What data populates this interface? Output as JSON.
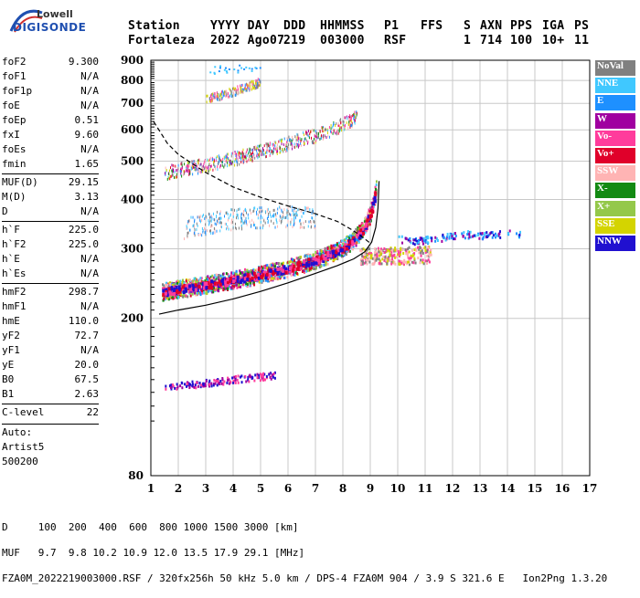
{
  "logo": {
    "line1": "Lowell",
    "line2": "DIGISONDE"
  },
  "header": {
    "labels": [
      "Station",
      "YYYY DAY",
      "DDD",
      "HHMMSS",
      "P1",
      "FFS",
      "S",
      "AXN",
      "PPS",
      "IGA",
      "PS"
    ],
    "values": [
      "Fortaleza",
      "2022 Ago07",
      "219",
      "003000",
      "RSF",
      "",
      "1",
      "714",
      "100",
      "10+",
      "11"
    ]
  },
  "params": [
    [
      {
        "k": "foF2",
        "v": "9.300"
      },
      {
        "k": "foF1",
        "v": "N/A"
      },
      {
        "k": "foF1p",
        "v": "N/A"
      },
      {
        "k": "foE",
        "v": "N/A"
      },
      {
        "k": "foEp",
        "v": "0.51"
      },
      {
        "k": "fxI",
        "v": "9.60"
      },
      {
        "k": "foEs",
        "v": "N/A"
      },
      {
        "k": "fmin",
        "v": "1.65"
      }
    ],
    [
      {
        "k": "MUF(D)",
        "v": "29.15"
      },
      {
        "k": "M(D)",
        "v": "3.13"
      },
      {
        "k": "D",
        "v": "N/A"
      }
    ],
    [
      {
        "k": "h`F",
        "v": "225.0"
      },
      {
        "k": "h`F2",
        "v": "225.0"
      },
      {
        "k": "h`E",
        "v": "N/A"
      },
      {
        "k": "h`Es",
        "v": "N/A"
      }
    ],
    [
      {
        "k": "hmF2",
        "v": "298.7"
      },
      {
        "k": "hmF1",
        "v": "N/A"
      },
      {
        "k": "hmE",
        "v": "110.0"
      },
      {
        "k": "yF2",
        "v": "72.7"
      },
      {
        "k": "yF1",
        "v": "N/A"
      },
      {
        "k": "yE",
        "v": "20.0"
      },
      {
        "k": "B0",
        "v": "67.5"
      },
      {
        "k": "B1",
        "v": "2.63"
      }
    ],
    [
      {
        "k": "C-level",
        "v": "22"
      }
    ]
  ],
  "auto": [
    "Auto:",
    "Artist5",
    "500200"
  ],
  "legend": [
    {
      "label": "NoVal",
      "color": "#808080"
    },
    {
      "label": "NNE",
      "color": "#40c8ff"
    },
    {
      "label": "E",
      "color": "#1e90ff"
    },
    {
      "label": "W",
      "color": "#a000a0"
    },
    {
      "label": "Vo-",
      "color": "#ff3c9c"
    },
    {
      "label": "Vo+",
      "color": "#e0002a"
    },
    {
      "label": "SSW",
      "color": "#ffb4b4"
    },
    {
      "label": "X-",
      "color": "#138a13"
    },
    {
      "label": "X+",
      "color": "#94c84a"
    },
    {
      "label": "SSE",
      "color": "#d4d400"
    },
    {
      "label": "NNW",
      "color": "#2010d0"
    }
  ],
  "footer": {
    "line1": "D     100  200  400  600  800 1000 1500 3000 [km]",
    "line2": "MUF   9.7  9.8 10.2 10.9 12.0 13.5 17.9 29.1 [MHz]",
    "line3": "FZA0M_2022219003000.RSF / 320fx256h 50 kHz 5.0 km / DPS-4 FZA0M 904 / 3.9 S 321.6 E   Ion2Png 1.3.20"
  },
  "chart_data": {
    "type": "scatter",
    "xlim": [
      1,
      17
    ],
    "ylim": [
      80,
      900
    ],
    "x_ticks": [
      1,
      2,
      3,
      4,
      5,
      6,
      7,
      8,
      9,
      10,
      11,
      12,
      13,
      14,
      15,
      16,
      17
    ],
    "y_ticks": [
      80,
      200,
      300,
      400,
      500,
      600,
      700,
      800,
      900
    ],
    "y_scale": "log",
    "grid": true,
    "legend_position": "right",
    "curves": [
      {
        "style": "solid",
        "points": [
          [
            1.3,
            205
          ],
          [
            2,
            210
          ],
          [
            3,
            216
          ],
          [
            4,
            224
          ],
          [
            5,
            234
          ],
          [
            6,
            246
          ],
          [
            7,
            260
          ],
          [
            7.8,
            272
          ],
          [
            8.4,
            283
          ],
          [
            8.8,
            295
          ],
          [
            9.05,
            312
          ],
          [
            9.2,
            340
          ],
          [
            9.28,
            380
          ],
          [
            9.32,
            445
          ]
        ]
      },
      {
        "style": "dashed",
        "points": [
          [
            1.1,
            630
          ],
          [
            1.6,
            555
          ],
          [
            2,
            520
          ],
          [
            3,
            468
          ],
          [
            4,
            430
          ],
          [
            5,
            405
          ],
          [
            6,
            385
          ],
          [
            7,
            368
          ],
          [
            7.8,
            352
          ],
          [
            8.4,
            333
          ],
          [
            8.8,
            318
          ],
          [
            9.0,
            310
          ]
        ]
      }
    ],
    "traces": [
      {
        "name": "F2 trace",
        "points": [
          [
            1.4,
            235
          ],
          [
            2,
            239
          ],
          [
            3,
            245
          ],
          [
            4,
            252
          ],
          [
            5,
            260
          ],
          [
            6,
            270
          ],
          [
            7,
            283
          ],
          [
            7.8,
            298
          ],
          [
            8.3,
            315
          ],
          [
            8.7,
            338
          ],
          [
            8.95,
            365
          ],
          [
            9.1,
            395
          ],
          [
            9.2,
            430
          ]
        ]
      },
      {
        "name": "F2 second hop",
        "points": [
          [
            1.5,
            470
          ],
          [
            2,
            478
          ],
          [
            3,
            492
          ],
          [
            4,
            510
          ],
          [
            5,
            532
          ],
          [
            6,
            558
          ],
          [
            7,
            585
          ],
          [
            7.6,
            605
          ],
          [
            8.1,
            630
          ],
          [
            8.5,
            650
          ]
        ]
      },
      {
        "name": "third hop",
        "points": [
          [
            3,
            720
          ],
          [
            3.5,
            738
          ],
          [
            4,
            755
          ],
          [
            4.5,
            775
          ],
          [
            5,
            800
          ]
        ]
      },
      {
        "name": "spread F",
        "points": [
          [
            10,
            320
          ],
          [
            10.5,
            315
          ],
          [
            11,
            318
          ],
          [
            12.5,
            328
          ],
          [
            13.3,
            326
          ],
          [
            14,
            330
          ],
          [
            14.5,
            327
          ]
        ]
      },
      {
        "name": "Es low",
        "points": [
          [
            1.5,
            134
          ],
          [
            2,
            136
          ],
          [
            3,
            138
          ],
          [
            4,
            141
          ],
          [
            5,
            143
          ],
          [
            5.5,
            145
          ]
        ]
      }
    ]
  }
}
